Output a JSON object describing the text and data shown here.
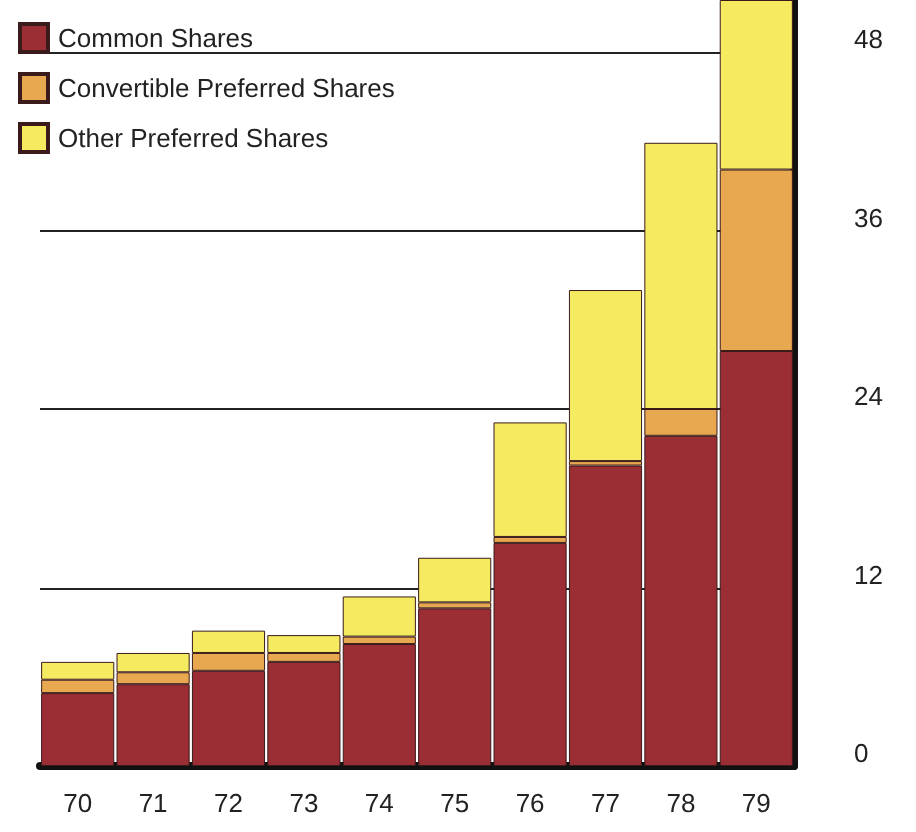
{
  "chart_data": {
    "type": "bar",
    "stacked": true,
    "categories": [
      "70",
      "71",
      "72",
      "73",
      "74",
      "75",
      "76",
      "77",
      "78",
      "79"
    ],
    "series": [
      {
        "name": "Common Shares",
        "color": "#9b2d35",
        "values": [
          4.9,
          5.5,
          6.4,
          7.0,
          8.2,
          10.6,
          15.0,
          20.2,
          22.2,
          27.9
        ]
      },
      {
        "name": "Convertible Preferred Shares",
        "color": "#e8a850",
        "values": [
          0.9,
          0.8,
          1.2,
          0.6,
          0.5,
          0.4,
          0.4,
          0.3,
          1.8,
          12.2
        ]
      },
      {
        "name": "Other Preferred Shares",
        "color": "#f5eb60",
        "values": [
          1.2,
          1.3,
          1.5,
          1.2,
          2.7,
          3.0,
          7.7,
          11.5,
          17.9,
          11.4
        ]
      }
    ],
    "ylim": [
      0,
      51.5
    ],
    "yticks": [
      0,
      12,
      24,
      36,
      48
    ],
    "grid": "y",
    "legend": "top left"
  }
}
